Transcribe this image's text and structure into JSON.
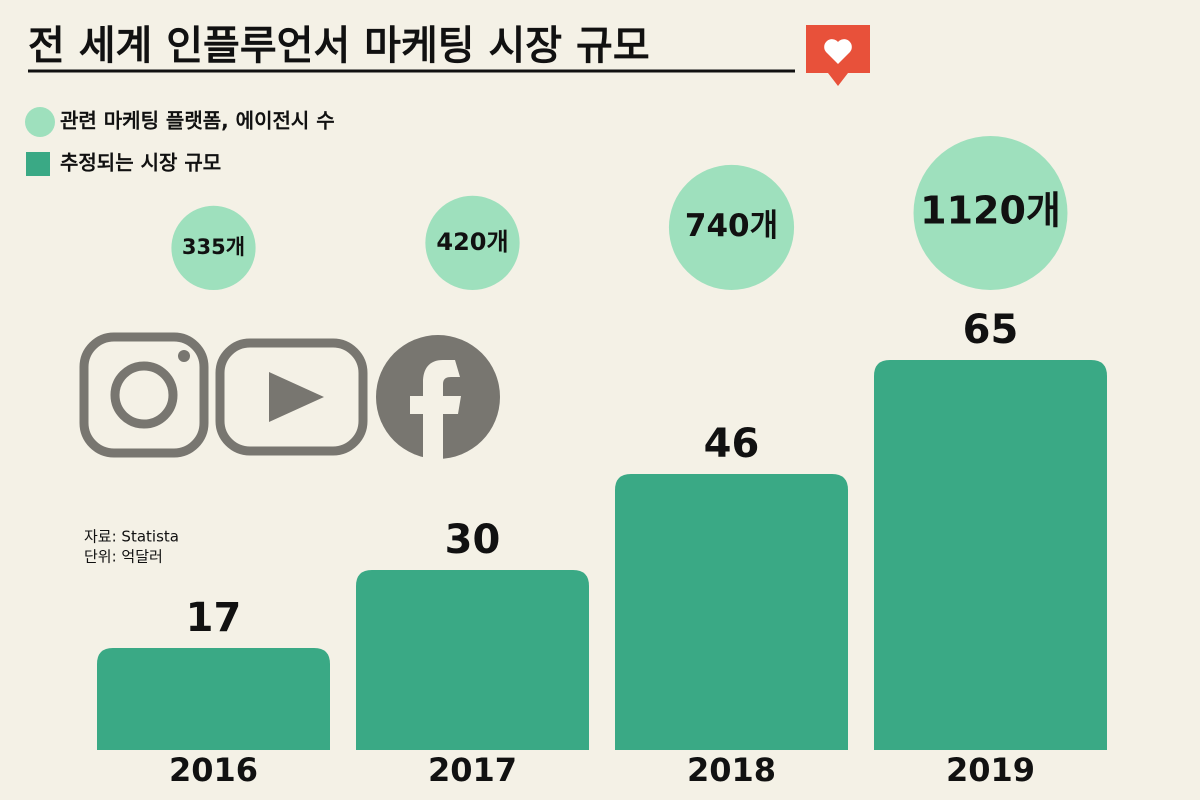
{
  "chart_data": {
    "type": "bar",
    "title": "전 세계 인플루언서 마케팅 시장 규모",
    "categories": [
      "2016",
      "2017",
      "2018",
      "2019"
    ],
    "series": [
      {
        "name": "관련 마케팅 플랫폼, 에이전시 수",
        "color": "#9ee0bd",
        "mark": "bubble",
        "values": [
          335,
          420,
          740,
          1120
        ],
        "value_labels": [
          "335개",
          "420개",
          "740개",
          "1120개"
        ]
      },
      {
        "name": "추정되는 시장 규모",
        "color": "#3aa985",
        "mark": "bar",
        "values": [
          17,
          30,
          46,
          65
        ]
      }
    ],
    "source": "자료: Statista",
    "unit": "단위: 억달러"
  }
}
